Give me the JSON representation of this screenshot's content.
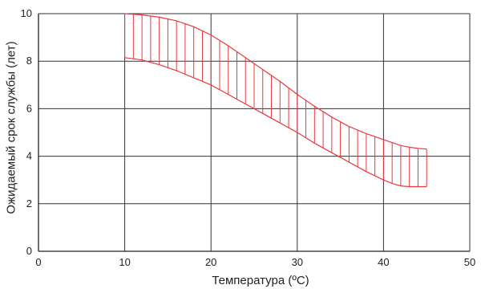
{
  "chart_data": {
    "type": "area",
    "title": "",
    "xlabel": "Температура (ºC)",
    "ylabel": "Ожидаемый срок службы (лет)",
    "xlim": [
      0,
      50
    ],
    "ylim": [
      0,
      10
    ],
    "x_ticks": [
      "0",
      "10",
      "20",
      "30",
      "40",
      "50"
    ],
    "y_ticks": [
      "0",
      "2",
      "4",
      "6",
      "8",
      "10"
    ],
    "grid": true,
    "band_color": "#e8383d",
    "band_fill": "vertical-hatch",
    "series": [
      {
        "x": [
          10,
          12,
          14,
          16,
          18,
          20,
          22,
          24,
          26,
          28,
          30,
          32,
          34,
          36,
          38,
          40,
          42,
          43,
          44,
          45
        ],
        "values": [
          10,
          9.95,
          9.85,
          9.7,
          9.45,
          9.1,
          8.65,
          8.15,
          7.65,
          7.15,
          6.6,
          6.1,
          5.65,
          5.25,
          4.95,
          4.7,
          4.45,
          4.38,
          4.33,
          4.3
        ]
      },
      {
        "x": [
          10,
          12,
          14,
          16,
          18,
          20,
          22,
          24,
          26,
          28,
          30,
          32,
          34,
          36,
          38,
          40,
          41,
          42,
          43,
          44,
          45
        ],
        "values": [
          8.15,
          8.05,
          7.85,
          7.6,
          7.3,
          7.0,
          6.6,
          6.2,
          5.8,
          5.4,
          5.0,
          4.55,
          4.15,
          3.75,
          3.35,
          3.0,
          2.85,
          2.75,
          2.72,
          2.72,
          2.72
        ]
      }
    ]
  }
}
